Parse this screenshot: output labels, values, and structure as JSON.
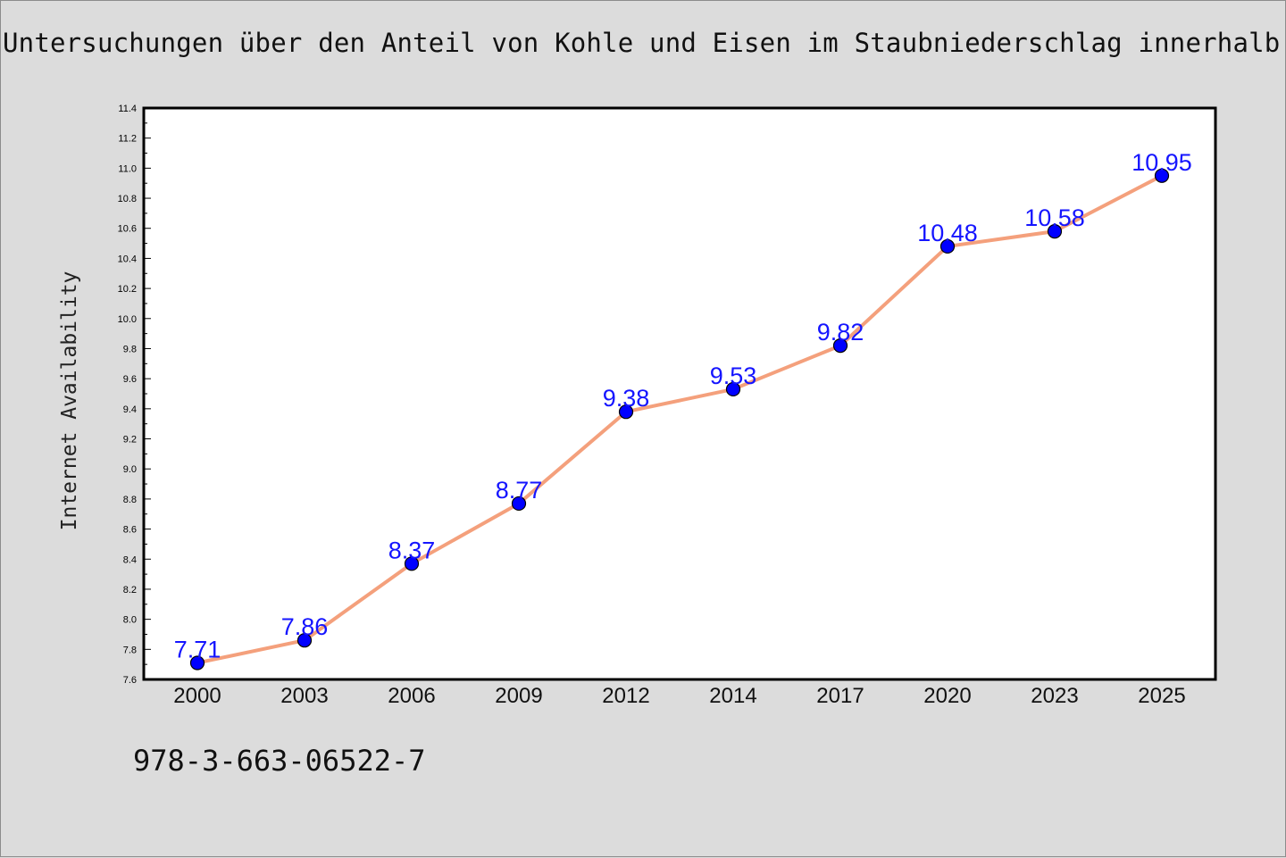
{
  "title": "Untersuchungen über den Anteil von Kohle und Eisen im Staubniederschlag innerhalb",
  "footer_text": "978-3-663-06522-7",
  "colors": {
    "background": "#dcdcdc",
    "plot_background": "#ffffff",
    "line": "#f4a07c",
    "marker": "#0000ff",
    "data_label": "#1515ff"
  },
  "chart_data": {
    "type": "line",
    "categories": [
      "2000",
      "2003",
      "2006",
      "2009",
      "2012",
      "2014",
      "2017",
      "2020",
      "2023",
      "2025"
    ],
    "values": [
      7.71,
      7.86,
      8.37,
      8.77,
      9.38,
      9.53,
      9.82,
      10.48,
      10.58,
      10.95
    ],
    "data_labels": [
      "7.71",
      "7.86",
      "8.37",
      "8.77",
      "9.38",
      "9.53",
      "9.82",
      "10.48",
      "10.58",
      "10.95"
    ],
    "ylabel": "Internet Availability",
    "xlabel": "",
    "ylim": [
      7.6,
      11.4
    ],
    "yticks": [
      "7.6",
      "7.8",
      "8.0",
      "8.2",
      "8.4",
      "8.6",
      "8.8",
      "9.0",
      "9.2",
      "9.4",
      "9.6",
      "9.8",
      "10.0",
      "10.2",
      "10.4",
      "10.6",
      "10.8",
      "11.0",
      "11.2",
      "11.4"
    ],
    "grid": false,
    "legend": "none"
  }
}
